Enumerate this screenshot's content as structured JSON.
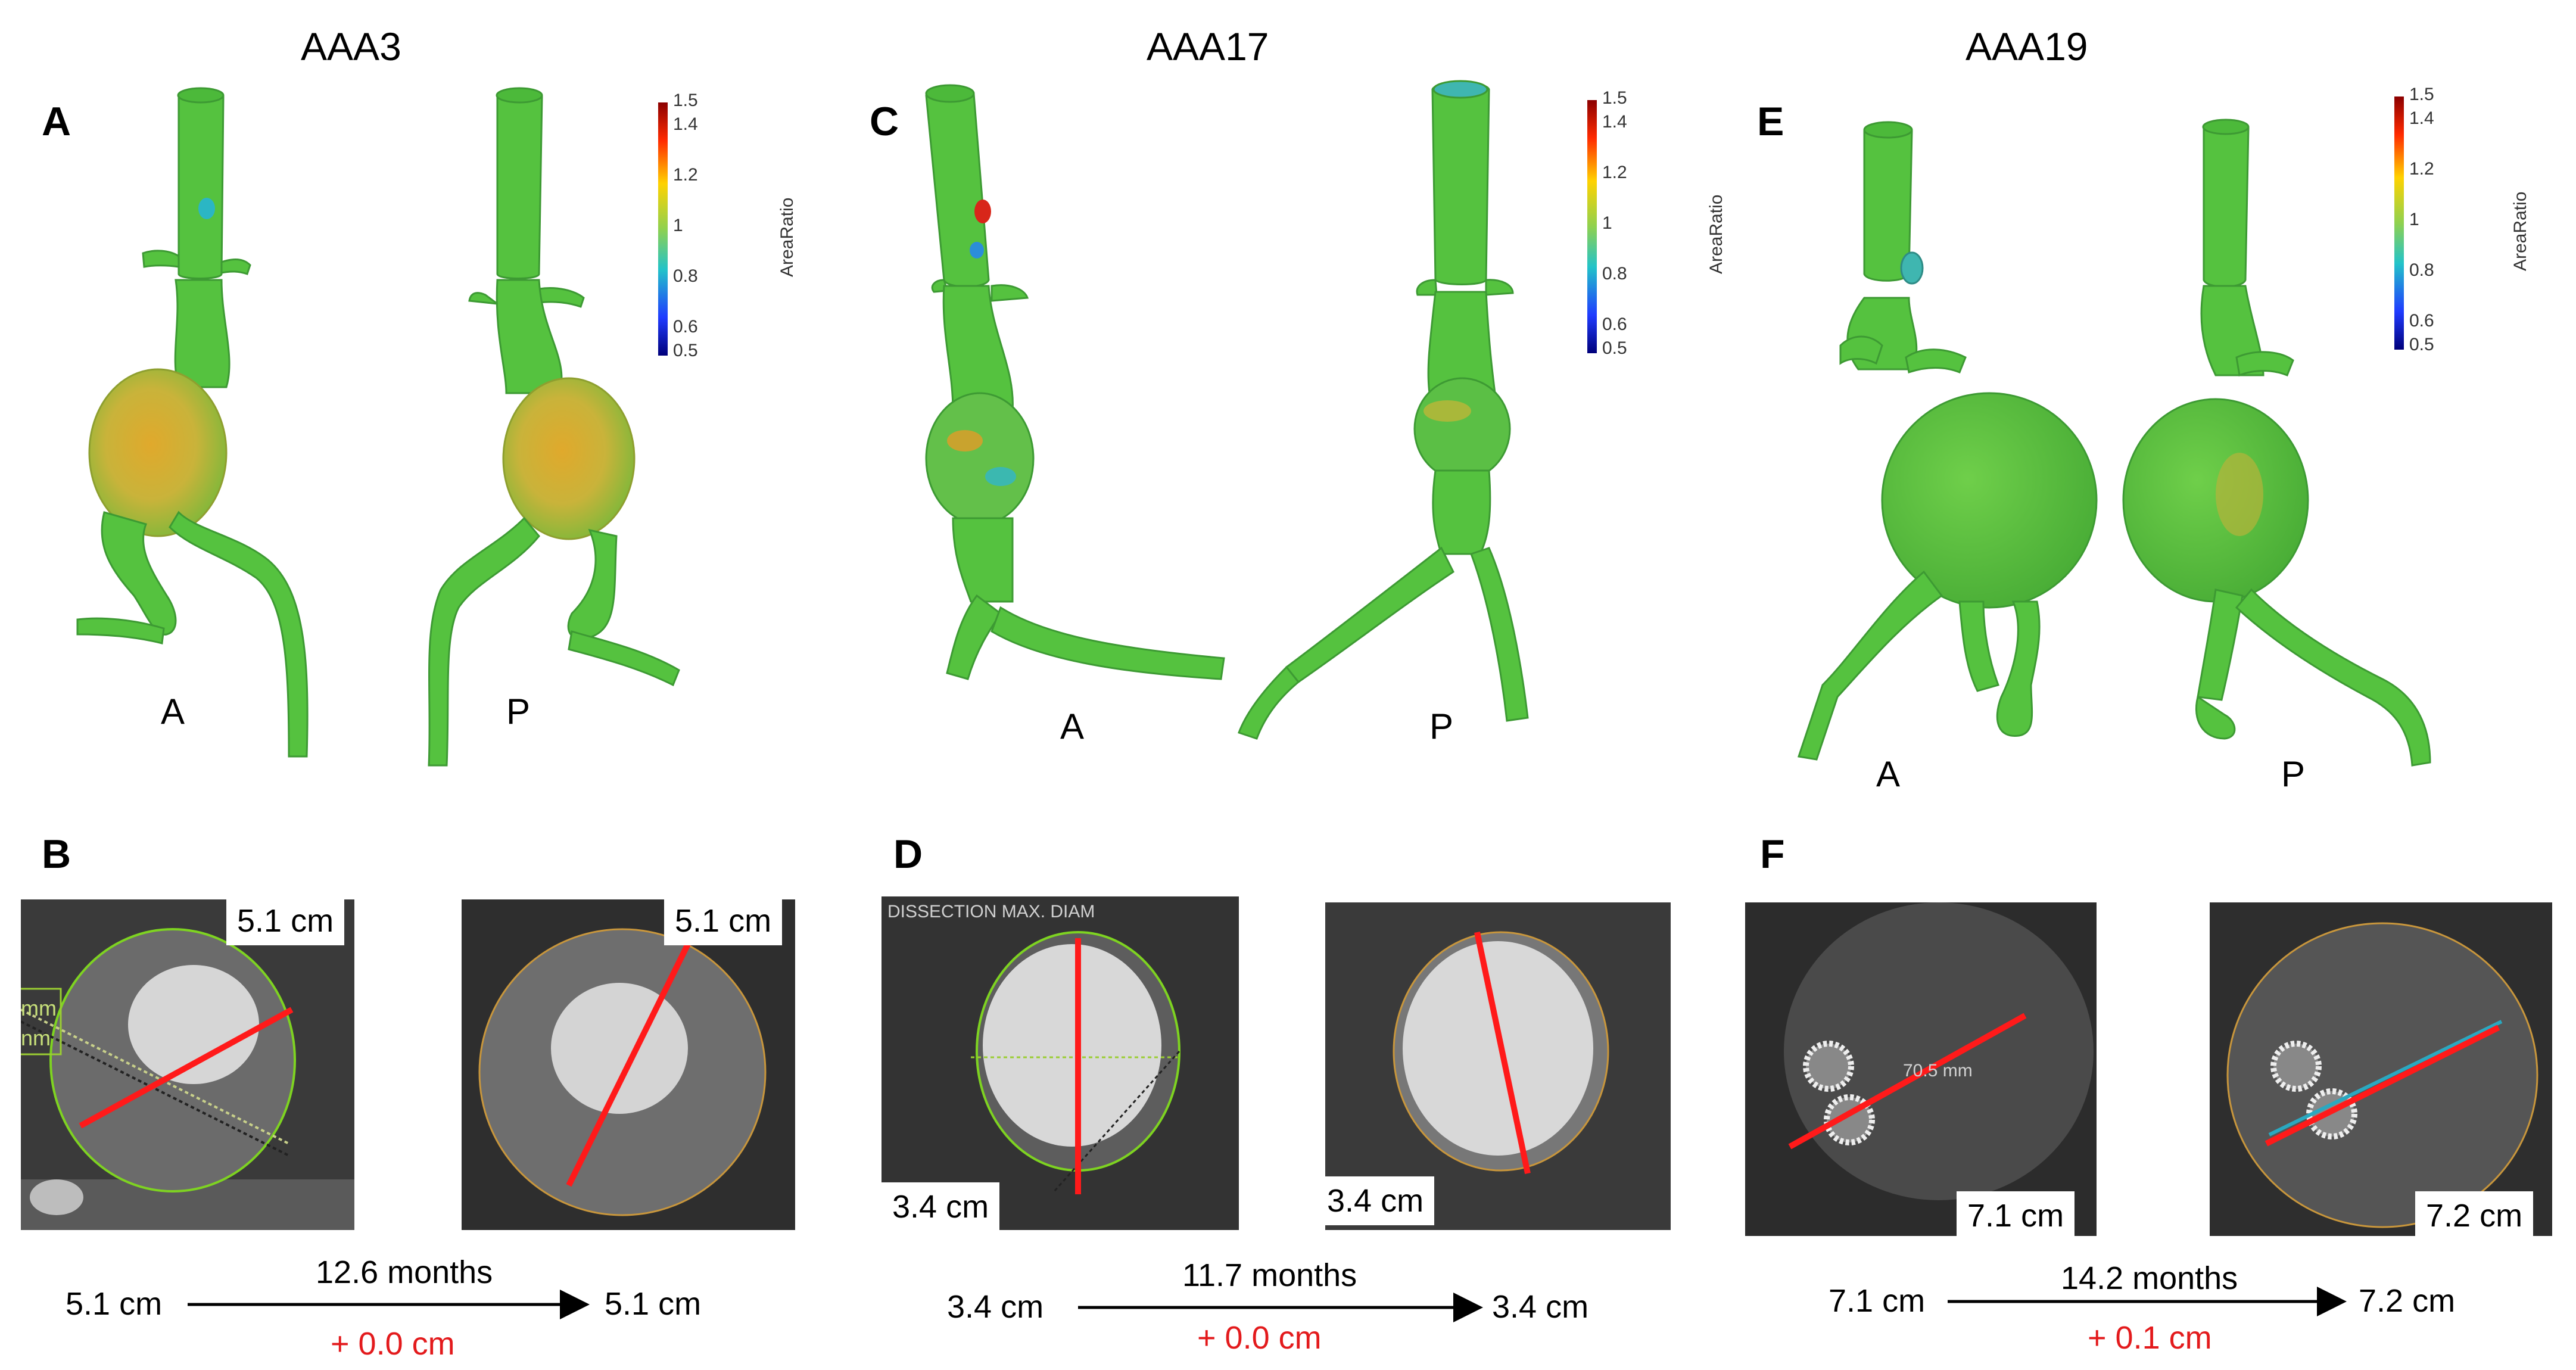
{
  "groups": [
    {
      "title": "AAA3",
      "letter_top": "A",
      "letter_bottom": "B",
      "view_anterior": "A",
      "view_posterior": "P",
      "before_label": "5.1 cm",
      "after_label": "5.1 cm",
      "timeline_start": "5.1 cm",
      "timeline_end": "5.1 cm",
      "interval": "12.6 months",
      "change": "+ 0.0 cm",
      "colorbar": {
        "ticks": [
          "1.5",
          "1.4",
          "1.2",
          "1",
          "0.8",
          "0.6",
          "0.5"
        ],
        "title": "AreaRatio"
      }
    },
    {
      "title": "AAA17",
      "letter_top": "C",
      "letter_bottom": "D",
      "view_anterior": "A",
      "view_posterior": "P",
      "before_label": "3.4 cm",
      "after_label": "3.4 cm",
      "timeline_start": "3.4 cm",
      "timeline_end": "3.4 cm",
      "interval": "11.7 months",
      "change": "+ 0.0 cm",
      "overlay_text": "DISSECTION MAX. DIAM",
      "colorbar": {
        "ticks": [
          "1.5",
          "1.4",
          "1.2",
          "1",
          "0.8",
          "0.6",
          "0.5"
        ],
        "title": "AreaRatio"
      }
    },
    {
      "title": "AAA19",
      "letter_top": "E",
      "letter_bottom": "F",
      "view_anterior": "A",
      "view_posterior": "P",
      "before_label": "7.1 cm",
      "after_label": "7.2 cm",
      "timeline_start": "7.1 cm",
      "timeline_end": "7.2 cm",
      "interval": "14.2 months",
      "change": "+ 0.1 cm",
      "overlay_text": "70.5 mm",
      "colorbar": {
        "ticks": [
          "1.5",
          "1.4",
          "1.2",
          "1",
          "0.8",
          "0.6",
          "0.5"
        ],
        "title": "AreaRatio"
      }
    }
  ],
  "aaa3_side_marks": [
    "mm",
    "nm"
  ],
  "colors": {
    "aorta": "#55c23f",
    "aorta_dark": "#3f9c35",
    "warm": "#d7a62a",
    "cool": "#3fb6b0",
    "measure_line": "#ff1a1a",
    "change_text": "#e31a1c",
    "outline_green": "#7ed321",
    "outline_orange": "#c8963c"
  }
}
